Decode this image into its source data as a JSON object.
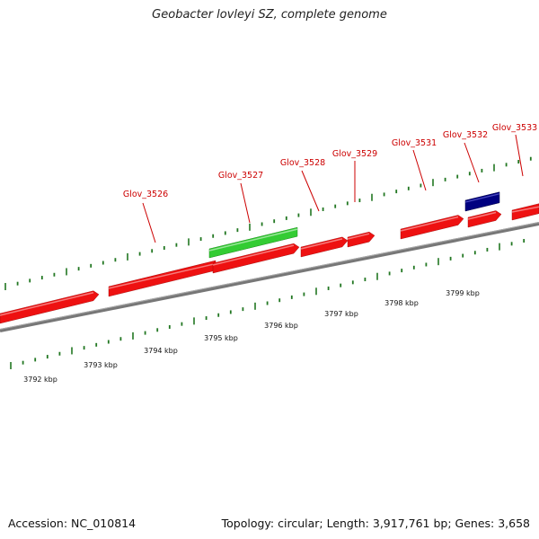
{
  "title": "Geobacter lovleyi SZ, complete genome",
  "footer": {
    "accession": "Accession: NC_010814",
    "meta": "Topology: circular; Length: 3,917,761 bp; Genes: 3,658"
  },
  "colors": {
    "forward_gene": "#ee1111",
    "green_gene": "#33cc33",
    "blue_gene": "#000080",
    "backbone": "#777777",
    "ticks": "#227722",
    "label": "#cc0000"
  },
  "gene_labels": [
    "Glov_3526",
    "Glov_3527",
    "Glov_3528",
    "Glov_3529",
    "Glov_3531",
    "Glov_3532",
    "Glov_3533"
  ],
  "kbp_labels": [
    "3792 kbp",
    "3793 kbp",
    "3794 kbp",
    "3795 kbp",
    "3796 kbp",
    "3797 kbp",
    "3798 kbp",
    "3799 kbp"
  ]
}
